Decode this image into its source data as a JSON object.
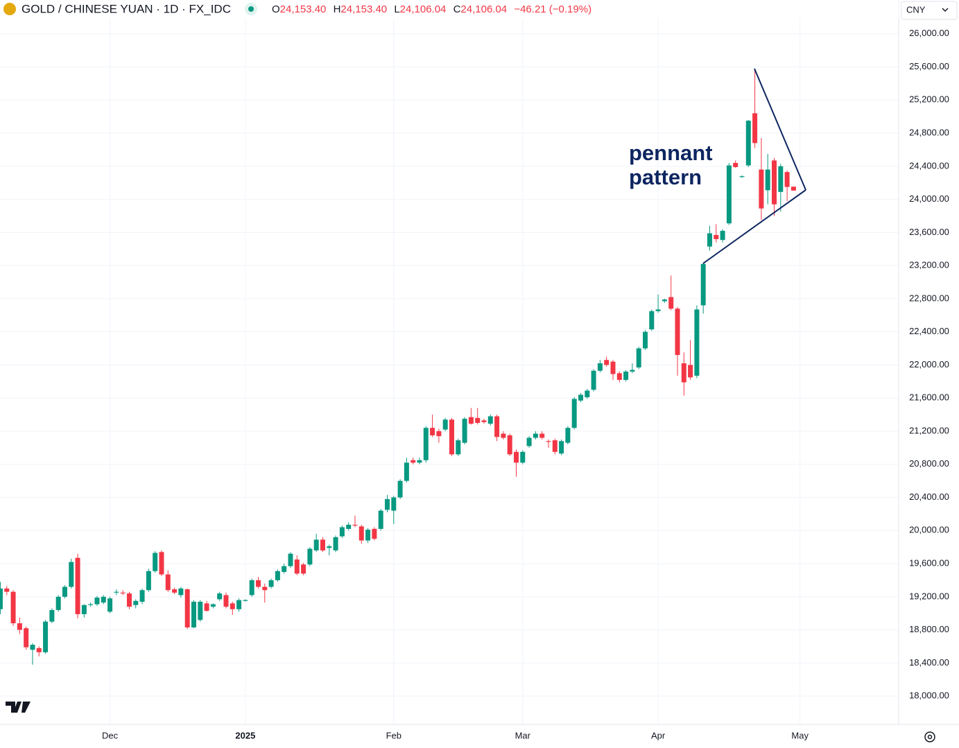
{
  "chart_data": {
    "type": "candlestick",
    "header": {
      "symbol": "GOLD / CHINESE YUAN · 1D · FX_IDC",
      "o_label": "O",
      "o": "24,153.40",
      "h_label": "H",
      "h": "24,153.40",
      "l_label": "L",
      "l": "24,106.04",
      "c_label": "C",
      "c": "24,106.04",
      "change": "−46.21 (−0.19%)"
    },
    "currency": "CNY",
    "up_color": "#089981",
    "down_color": "#f23645",
    "annotation": [
      "pennant",
      "pattern"
    ],
    "xlim": [
      -0.05,
      139.3
    ],
    "xticks": [
      {
        "value": 17,
        "label": "Dec"
      },
      {
        "value": 38,
        "label": "2025"
      },
      {
        "value": 61,
        "label": "Feb"
      },
      {
        "value": 81,
        "label": "Mar"
      },
      {
        "value": 102,
        "label": "Apr"
      },
      {
        "value": 124,
        "label": "May"
      }
    ],
    "ylim": [
      17658,
      26408
    ],
    "yticks": [
      {
        "value": 18000,
        "label": "18,000.00"
      },
      {
        "value": 18400,
        "label": "18,400.00"
      },
      {
        "value": 18800,
        "label": "18,800.00"
      },
      {
        "value": 19200,
        "label": "19,200.00"
      },
      {
        "value": 19600,
        "label": "19,600.00"
      },
      {
        "value": 20000,
        "label": "20,000.00"
      },
      {
        "value": 20400,
        "label": "20,400.00"
      },
      {
        "value": 20800,
        "label": "20,800.00"
      },
      {
        "value": 21200,
        "label": "21,200.00"
      },
      {
        "value": 21600,
        "label": "21,600.00"
      },
      {
        "value": 22000,
        "label": "22,000.00"
      },
      {
        "value": 22400,
        "label": "22,400.00"
      },
      {
        "value": 22800,
        "label": "22,800.00"
      },
      {
        "value": 23200,
        "label": "23,200.00"
      },
      {
        "value": 23600,
        "label": "23,600.00"
      },
      {
        "value": 24000,
        "label": "24,000.00"
      },
      {
        "value": 24400,
        "label": "24,400.00"
      },
      {
        "value": 24800,
        "label": "24,800.00"
      },
      {
        "value": 25200,
        "label": "25,200.00"
      },
      {
        "value": 25600,
        "label": "25,600.00"
      },
      {
        "value": 26000,
        "label": "26,000.00"
      }
    ],
    "grid": true,
    "open": [
      19050,
      19300,
      19260,
      18880,
      18820,
      18560,
      18580,
      18530,
      18900,
      19040,
      19200,
      19320,
      19670,
      18990,
      19100,
      19110,
      19130,
      19020,
      19250,
      19250,
      19240,
      19100,
      19140,
      19280,
      19510,
      19740,
      19470,
      19290,
      19220,
      19290,
      18830,
      18920,
      19120,
      19080,
      19170,
      19220,
      19120,
      19050,
      19150,
      19220,
      19400,
      19320,
      19320,
      19400,
      19500,
      19570,
      19650,
      19590,
      19590,
      19760,
      19890,
      19790,
      19760,
      19930,
      20020,
      20070,
      20050,
      19880,
      20020,
      20020,
      20250,
      20240,
      20400,
      20600,
      20850,
      20820,
      20850,
      21240,
      21200,
      21220,
      21340,
      20920,
      21060,
      21370,
      21360,
      21330,
      21290,
      21380,
      21170,
      21150,
      20950,
      20820,
      21020,
      21120,
      21170,
      21080,
      21090,
      20930,
      21060,
      21240,
      21570,
      21610,
      21700,
      21930,
      22060,
      22040,
      21900,
      21820,
      21920,
      21970,
      22200,
      22430,
      22650,
      22770,
      22820,
      22680,
      22020,
      22000,
      21870,
      22720,
      23430,
      23570,
      23510,
      23710,
      24440,
      24270,
      24410,
      25040,
      24360,
      24110,
      24470,
      24090,
      24330,
      24153.4
    ],
    "high": [
      19380,
      19330,
      19280,
      18950,
      18840,
      18640,
      18600,
      18920,
      19060,
      19220,
      19340,
      19660,
      19720,
      19110,
      19130,
      19210,
      19220,
      19200,
      19290,
      19280,
      19260,
      19170,
      19300,
      19540,
      19750,
      19760,
      19520,
      19310,
      19320,
      19300,
      19160,
      19160,
      19150,
      19120,
      19260,
      19250,
      19140,
      19180,
      19170,
      19420,
      19440,
      19360,
      19420,
      19530,
      19600,
      19740,
      19700,
      19610,
      19800,
      19960,
      19920,
      19830,
      19940,
      20060,
      20100,
      20180,
      20070,
      20030,
      20040,
      20260,
      20430,
      20420,
      20620,
      20880,
      20880,
      20880,
      21260,
      21400,
      21230,
      21360,
      21360,
      21110,
      21370,
      21480,
      21480,
      21350,
      21400,
      21400,
      21200,
      21170,
      20980,
      20970,
      21140,
      21200,
      21200,
      21100,
      21110,
      21100,
      21260,
      21610,
      21660,
      21710,
      21950,
      22060,
      22100,
      22060,
      21920,
      21940,
      22020,
      22220,
      22420,
      22670,
      22850,
      22800,
      23080,
      22700,
      22150,
      22300,
      22720,
      23230,
      23680,
      23700,
      23640,
      24440,
      24470,
      24290,
      24960,
      25560,
      24740,
      24550,
      24500,
      24430,
      24350,
      24153.4
    ],
    "low": [
      18990,
      19220,
      18850,
      18750,
      18560,
      18380,
      18480,
      18510,
      18880,
      19020,
      19180,
      19300,
      18940,
      18950,
      19080,
      19090,
      19110,
      19000,
      19220,
      19220,
      19050,
      19060,
      19110,
      19260,
      19490,
      19450,
      19260,
      19230,
      19190,
      18810,
      18820,
      18900,
      19020,
      19060,
      19150,
      19060,
      18980,
      19020,
      19140,
      19200,
      19300,
      19130,
      19300,
      19380,
      19480,
      19550,
      19460,
      19460,
      19570,
      19740,
      19740,
      19700,
      19740,
      19910,
      20000,
      20040,
      19840,
      19850,
      19880,
      20000,
      20220,
      20080,
      20380,
      20580,
      20800,
      20800,
      20820,
      21130,
      21060,
      21200,
      20900,
      20900,
      21040,
      21280,
      21280,
      21290,
      21270,
      21080,
      21100,
      20900,
      20650,
      20800,
      21000,
      21100,
      21100,
      21000,
      20920,
      20910,
      21040,
      21220,
      21550,
      21590,
      21680,
      21910,
      21980,
      21820,
      21790,
      21800,
      21900,
      21950,
      22180,
      22410,
      22630,
      22750,
      22660,
      21870,
      21630,
      21820,
      21840,
      22620,
      23380,
      23480,
      23480,
      23690,
      24380,
      24260,
      24390,
      24620,
      23750,
      23940,
      23800,
      23850,
      23980,
      24106.04
    ],
    "close": [
      19300,
      19260,
      18880,
      18800,
      18590,
      18620,
      18530,
      18900,
      19040,
      19200,
      19320,
      19620,
      18990,
      19100,
      19110,
      19190,
      19200,
      19180,
      19260,
      19240,
      19080,
      19150,
      19280,
      19510,
      19730,
      19470,
      19280,
      19250,
      19300,
      18830,
      19140,
      19140,
      19030,
      19110,
      19240,
      19080,
      19050,
      19160,
      19160,
      19400,
      19320,
      19280,
      19400,
      19510,
      19570,
      19720,
      19480,
      19480,
      19780,
      19890,
      19760,
      19810,
      19920,
      20040,
      20070,
      20060,
      19880,
      20010,
      19900,
      20240,
      20380,
      20400,
      20600,
      20820,
      20820,
      20850,
      21240,
      21150,
      21140,
      21340,
      20920,
      21090,
      21350,
      21290,
      21300,
      21310,
      21380,
      21130,
      21120,
      20920,
      20820,
      20950,
      21120,
      21170,
      21120,
      21070,
      20950,
      21080,
      21240,
      21590,
      21640,
      21690,
      21930,
      22020,
      22000,
      21890,
      21820,
      21920,
      21940,
      22200,
      22400,
      22650,
      22670,
      22790,
      22680,
      22120,
      21790,
      21850,
      22670,
      23220,
      23590,
      23520,
      23620,
      24410,
      24390,
      24280,
      24950,
      24680,
      23890,
      24360,
      23940,
      24400,
      24150,
      24106.04
    ]
  }
}
